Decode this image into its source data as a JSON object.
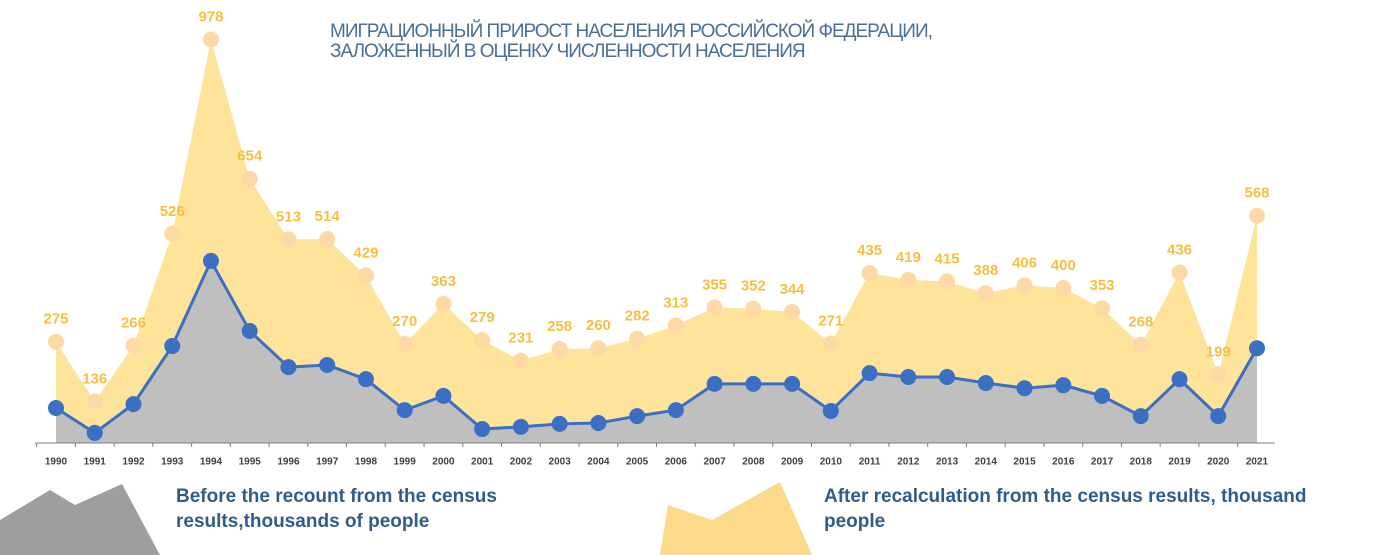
{
  "chart_data": {
    "type": "area",
    "title": [
      "МИГРАЦИОННЫЙ ПРИРОСТ НАСЕЛЕНИЯ РОССИЙСКОЙ ФЕДЕРАЦИИ,",
      "ЗАЛОЖЕННЫЙ В ОЦЕНКУ ЧИСЛЕННОСТИ НАСЕЛЕНИЯ"
    ],
    "categories": [
      "1990",
      "1991",
      "1992",
      "1993",
      "1994",
      "1995",
      "1996",
      "1997",
      "1998",
      "1999",
      "2000",
      "2001",
      "2002",
      "2003",
      "2004",
      "2005",
      "2006",
      "2007",
      "2008",
      "2009",
      "2010",
      "2011",
      "2012",
      "2013",
      "2014",
      "2015",
      "2016",
      "2017",
      "2018",
      "2019",
      "2020",
      "2021"
    ],
    "ylim": [
      0,
      1000
    ],
    "series": [
      {
        "name": "After recalculation from the census results, thousand people",
        "color": "#fee39b",
        "marker_color": "#fdd9a6",
        "label_color": "#f5bf3f",
        "values": [
          275,
          136,
          266,
          526,
          978,
          654,
          513,
          514,
          429,
          270,
          363,
          279,
          231,
          258,
          260,
          282,
          313,
          355,
          352,
          344,
          271,
          435,
          419,
          415,
          388,
          406,
          400,
          353,
          268,
          436,
          199,
          568
        ]
      },
      {
        "name": "Before the recount from the census results,thousands of people",
        "color": "#bfbfbf",
        "line_color": "#3a6fc4",
        "values": [
          121,
          63,
          130,
          265,
          463,
          300,
          216,
          221,
          188,
          116,
          149,
          72,
          77,
          84,
          86,
          102,
          116,
          177,
          177,
          177,
          114,
          202,
          193,
          193,
          179,
          167,
          174,
          149,
          102,
          188,
          102,
          260
        ]
      }
    ]
  }
}
